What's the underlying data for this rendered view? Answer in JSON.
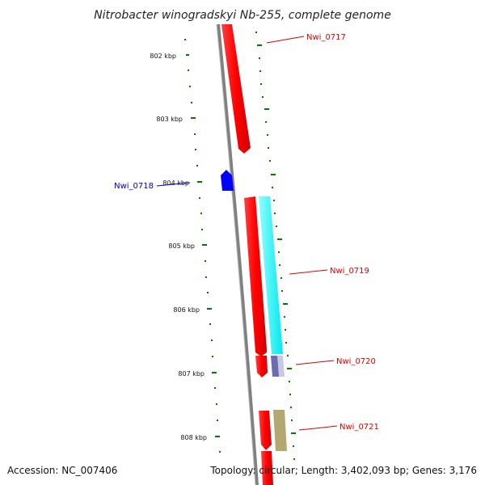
{
  "title": "Nitrobacter winogradskyi Nb-255, complete genome",
  "accession": "Accession: NC_007406",
  "topology": "Topology: circular; Length: 3,402,093 bp; Genes: 3,176",
  "kbp_labels": [
    "802 kbp",
    "803 kbp",
    "804 kbp",
    "805 kbp",
    "806 kbp",
    "807 kbp",
    "808 kbp"
  ],
  "gene_labels": [
    {
      "name": "Nwi_0717",
      "color": "#e00000"
    },
    {
      "name": "Nwi_0718",
      "color": "#0000c0"
    },
    {
      "name": "Nwi_0719",
      "color": "#e00000"
    },
    {
      "name": "Nwi_0720",
      "color": "#e00000"
    },
    {
      "name": "Nwi_0721",
      "color": "#e00000"
    }
  ],
  "colors": {
    "backbone": "#808080",
    "forward_gene": "#ff0000",
    "reverse_gene": "#0000ff",
    "cyan_feature": "#00ffff",
    "navy_feature": "#6b6bb0",
    "olive_feature": "#b3a872",
    "tick": "#007a00"
  }
}
